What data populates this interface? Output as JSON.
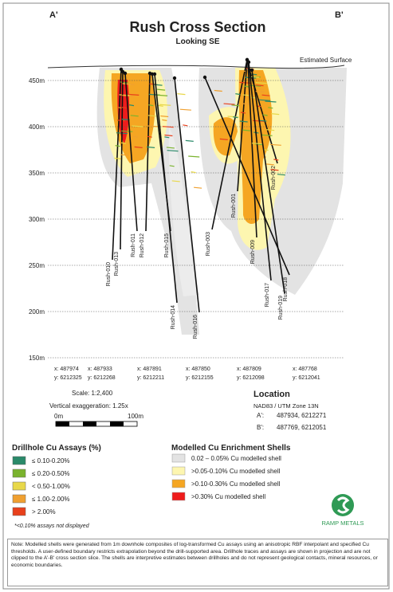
{
  "header": {
    "left_label": "A'",
    "right_label": "B'",
    "title": "Rush Cross Section",
    "subtitle": "Looking SE"
  },
  "section": {
    "surface_label": "Estimated Surface",
    "elevations": [
      "450m",
      "400m",
      "350m",
      "300m",
      "250m",
      "200m",
      "150m"
    ],
    "drillholes": [
      "Rush-010",
      "Rush-013",
      "Rush-011",
      "Rush-012",
      "Rush-015",
      "Rush-014",
      "Rush-016",
      "Rush-003",
      "Rush-001",
      "Rush-009",
      "Rush-002",
      "Rush-017",
      "Rush-018",
      "Rush-019"
    ],
    "coordinates": [
      {
        "x": "x: 487974",
        "y": "y: 6212325"
      },
      {
        "x": "x: 487933",
        "y": "y: 6212268"
      },
      {
        "x": "x: 487891",
        "y": "y: 6212211"
      },
      {
        "x": "x: 487850",
        "y": "y: 6212155"
      },
      {
        "x": "x: 487809",
        "y": "y: 6212098"
      },
      {
        "x": "x: 487768",
        "y": "y: 6212041"
      }
    ]
  },
  "scale": {
    "ratio": "Scale: 1:2,400",
    "exaggeration": "Vertical exaggeration: 1.25x",
    "bar_start": "0m",
    "bar_end": "100m"
  },
  "location": {
    "title": "Location",
    "datum": "NAD83 / UTM Zone 13N",
    "a_label": "A':",
    "a_value": "487934, 6212271",
    "b_label": "B':",
    "b_value": "487769, 6212051"
  },
  "assay_legend": {
    "title": "Drillhole Cu Assays (%)",
    "items": [
      {
        "label": "≤ 0.10-0.20%",
        "color": "#2a8a6a"
      },
      {
        "label": "≤ 0.20-0.50%",
        "color": "#7ab32e"
      },
      {
        "label": "< 0.50-1.00%",
        "color": "#e8d84a"
      },
      {
        "label": "≤ 1.00-2.00%",
        "color": "#f0a030"
      },
      {
        "label": "> 2.00%",
        "color": "#e8401c"
      }
    ],
    "footnote": "*<0.10% assays not displayed"
  },
  "shell_legend": {
    "title": "Modelled Cu Enrichment Shells",
    "items": [
      {
        "label": "0.02 – 0.05% Cu modelled shell",
        "color": "#e3e3e3"
      },
      {
        "label": ">0.05-0.10% Cu modelled shell",
        "color": "#fdf6b0"
      },
      {
        "label": ">0.10-0.30% Cu modelled shell",
        "color": "#f5a623"
      },
      {
        "label": ">0.30% Cu modelled shell",
        "color": "#ee1c1c"
      }
    ]
  },
  "logo": {
    "text": "RAMP METALS"
  },
  "note": "Note: Modelled shells were generated from 1m downhole composites of log-transformed Cu assays using an anisotropic RBF interpolant and specified Cu thresholds. A user-defined boundary restricts extrapolation beyond the drill-supported area. Drillhole traces and assays are shown in projection and are not clipped to the A'-B' cross section slice. The shells are interpretive estimates between drillholes and do not represent geological contacts, mineral resources, or economic boundaries."
}
